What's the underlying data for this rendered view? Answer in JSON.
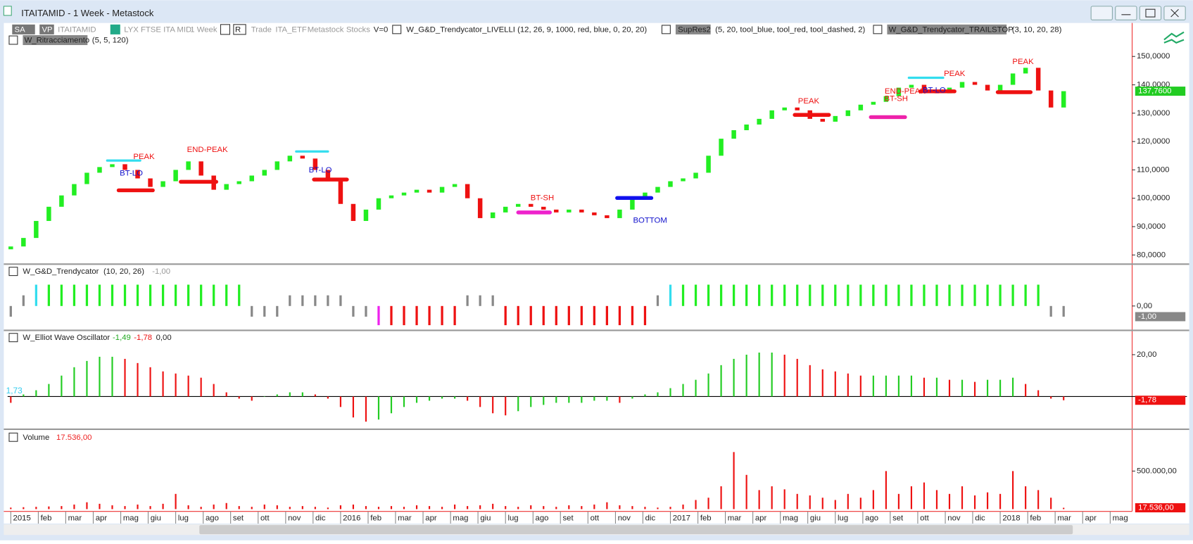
{
  "window": {
    "title": "ITAITAMID - 1 Week - Metastock"
  },
  "toolbar": {
    "sa": "SA",
    "vp": "VP",
    "symbol": "ITAITAMID",
    "name": "LYX FTSE ITA MID",
    "period": "1 Week",
    "r": "R",
    "trade": "Trade",
    "group": "ITA_ETF",
    "source": "Metastock",
    "kind": "Stocks",
    "v": "V=0",
    "indicators": [
      {
        "name": "W_G&D_Trendycator_LIVELLI",
        "params": "(12, 26, 9, 1000, red, blue, 0, 20, 20)"
      },
      {
        "name": "SupRes2",
        "params": "(5, 20, tool_blue, tool_red, tool_dashed, 2)"
      },
      {
        "name": "W_G&D_Trendycator_TRAILSTOP",
        "params": "(3, 10, 20, 28)"
      },
      {
        "name": "W_Ritracciamento",
        "params": "(5, 5, 120)"
      }
    ]
  },
  "chart_data": [
    {
      "type": "candlestick",
      "up_color": "#22ee22",
      "down_color": "#ee1111",
      "last_label": "137,7600",
      "last_color": "#22cc22",
      "open": [
        82,
        83,
        86,
        92,
        97,
        101,
        105,
        109,
        111,
        112,
        110,
        107,
        104,
        106,
        110,
        113,
        108,
        103,
        105,
        106,
        108,
        110,
        113,
        115,
        114,
        110,
        106,
        98,
        92,
        96,
        100,
        101,
        102,
        103,
        102,
        104,
        105,
        100,
        93,
        95,
        97,
        98,
        97,
        96,
        95,
        96,
        95,
        94,
        93,
        96,
        100,
        102,
        104,
        106,
        107,
        109,
        115,
        121,
        124,
        126,
        128,
        131,
        132,
        131,
        128,
        127,
        129,
        131,
        133,
        134,
        136,
        139,
        140,
        138,
        137,
        139,
        141,
        140,
        138,
        140,
        144,
        146,
        138,
        132
      ],
      "close": [
        83,
        86,
        92,
        97,
        101,
        105,
        109,
        111,
        112,
        110,
        107,
        104,
        106,
        110,
        113,
        108,
        103,
        105,
        106,
        108,
        110,
        113,
        115,
        114,
        110,
        106,
        98,
        92,
        96,
        100,
        101,
        102,
        103,
        102,
        104,
        105,
        100,
        93,
        95,
        97,
        98,
        97,
        96,
        95,
        96,
        95,
        94,
        93,
        96,
        100,
        102,
        104,
        106,
        107,
        109,
        115,
        121,
        124,
        126,
        128,
        131,
        132,
        131,
        128,
        127,
        129,
        131,
        133,
        134,
        136,
        139,
        140,
        138,
        137,
        139,
        141,
        140,
        138,
        140,
        144,
        146,
        138,
        132,
        137.76
      ],
      "ylim": [
        77.3,
        161.8
      ],
      "yticks": [
        {
          "value": 80,
          "label": "80,0000"
        },
        {
          "value": 90,
          "label": "90,0000"
        },
        {
          "value": 100,
          "label": "100,0000"
        },
        {
          "value": 110,
          "label": "110,0000"
        },
        {
          "value": 120,
          "label": "120,0000"
        },
        {
          "value": 130,
          "label": "130,0000"
        },
        {
          "value": 140,
          "label": "140,0000"
        },
        {
          "value": 150,
          "label": "150,0000"
        }
      ],
      "levels": [
        {
          "start": 7.6,
          "end": 10.2,
          "value": 113.3,
          "color": "#33ddee"
        },
        {
          "start": 8.5,
          "end": 11.2,
          "value": 102.8,
          "color": "#ee1111"
        },
        {
          "start": 13.4,
          "end": 16.2,
          "value": 105.8,
          "color": "#ee1111"
        },
        {
          "start": 22.5,
          "end": 25,
          "value": 116.5,
          "color": "#33ddee"
        },
        {
          "start": 23.9,
          "end": 26.5,
          "value": 106.6,
          "color": "#ee1111"
        },
        {
          "start": 40,
          "end": 42.5,
          "value": 95,
          "color": "#ee22cc"
        },
        {
          "start": 47.8,
          "end": 50.5,
          "value": 100.1,
          "color": "#1111ee"
        },
        {
          "start": 61.8,
          "end": 64.5,
          "value": 129.4,
          "color": "#ee1111"
        },
        {
          "start": 67.8,
          "end": 70.5,
          "value": 128.6,
          "color": "#ee22aa"
        },
        {
          "start": 70.8,
          "end": 73.5,
          "value": 142.5,
          "color": "#33ddee"
        },
        {
          "start": 71.7,
          "end": 74.4,
          "value": 137.7,
          "color": "#ee1111"
        },
        {
          "start": 77.8,
          "end": 80.4,
          "value": 137.4,
          "color": "#ee1111"
        }
      ],
      "annotations": [
        {
          "text": "PEAK",
          "x": 10.5,
          "y": 114.6,
          "color": "#ee1111"
        },
        {
          "text": "BT-LO",
          "x": 9.5,
          "y": 108.7,
          "color": "#1111cc"
        },
        {
          "text": "END-PEAK",
          "x": 15.5,
          "y": 117,
          "color": "#ee1111"
        },
        {
          "text": "BT-LO",
          "x": 24.4,
          "y": 109.8,
          "color": "#1111cc"
        },
        {
          "text": "BT-SH",
          "x": 41.9,
          "y": 100.1,
          "color": "#ee1111"
        },
        {
          "text": "BOTTOM",
          "x": 50.4,
          "y": 92.1,
          "color": "#1111cc"
        },
        {
          "text": "PEAK",
          "x": 62.9,
          "y": 134.2,
          "color": "#ee1111"
        },
        {
          "text": "END-PEAK",
          "x": 70.5,
          "y": 137.7,
          "color": "#ee1111"
        },
        {
          "text": "BT-SH",
          "x": 69.8,
          "y": 135,
          "color": "#ee1111"
        },
        {
          "text": "BT-LO",
          "x": 72.8,
          "y": 138,
          "color": "#1111cc"
        },
        {
          "text": "PEAK",
          "x": 74.4,
          "y": 143.8,
          "color": "#ee1111"
        },
        {
          "text": "PEAK",
          "x": 79.8,
          "y": 148.1,
          "color": "#ee1111"
        }
      ]
    },
    {
      "type": "bar",
      "title": "W_G&D_Trendycator",
      "params": "(10, 20, 26)",
      "last_label": "-1,00",
      "last_color": "#888888",
      "values": [
        -1,
        1,
        2,
        2,
        2,
        2,
        2,
        2,
        2,
        2,
        2,
        2,
        2,
        2,
        2,
        2,
        2,
        2,
        2,
        -1,
        -1,
        -1,
        1,
        1,
        1,
        1,
        1,
        -1,
        -1,
        -1.8,
        -1.8,
        -1.8,
        -1.8,
        -1.8,
        -1.8,
        -1.8,
        1,
        1,
        1,
        -1.8,
        -1.8,
        -1.8,
        -1.8,
        -1.8,
        -1.8,
        -1.8,
        -1.8,
        -1.8,
        -1.8,
        -1.8,
        -1.8,
        1,
        2,
        2,
        2,
        2,
        2,
        2,
        2,
        2,
        2,
        2,
        2,
        2,
        2,
        2,
        2,
        2,
        2,
        2,
        2,
        2,
        2,
        2,
        2,
        2,
        2,
        2,
        2,
        2,
        2,
        2,
        -1,
        -1
      ],
      "colors": [
        "#888888",
        "#888888",
        "#33ddee",
        "#22ee22",
        "#22ee22",
        "#22ee22",
        "#22ee22",
        "#22ee22",
        "#22ee22",
        "#22ee22",
        "#22ee22",
        "#22ee22",
        "#22ee22",
        "#22ee22",
        "#22ee22",
        "#22ee22",
        "#22ee22",
        "#22ee22",
        "#22ee22",
        "#888888",
        "#888888",
        "#888888",
        "#888888",
        "#888888",
        "#888888",
        "#888888",
        "#888888",
        "#888888",
        "#888888",
        "#ee22ee",
        "#ee1111",
        "#ee1111",
        "#ee1111",
        "#ee1111",
        "#ee1111",
        "#ee1111",
        "#888888",
        "#888888",
        "#888888",
        "#ee1111",
        "#ee1111",
        "#ee1111",
        "#ee1111",
        "#ee1111",
        "#ee1111",
        "#ee1111",
        "#ee1111",
        "#ee1111",
        "#ee1111",
        "#ee1111",
        "#ee1111",
        "#888888",
        "#33ddee",
        "#22ee22",
        "#22ee22",
        "#22ee22",
        "#22ee22",
        "#22ee22",
        "#22ee22",
        "#22ee22",
        "#22ee22",
        "#22ee22",
        "#22ee22",
        "#22ee22",
        "#22ee22",
        "#22ee22",
        "#22ee22",
        "#22ee22",
        "#22ee22",
        "#22ee22",
        "#22ee22",
        "#22ee22",
        "#22ee22",
        "#22ee22",
        "#22ee22",
        "#22ee22",
        "#22ee22",
        "#22ee22",
        "#22ee22",
        "#22ee22",
        "#22ee22",
        "#22ee22",
        "#888888",
        "#888888"
      ],
      "ylim": [
        -2.14,
        3.71
      ],
      "yticks": [
        {
          "value": 0,
          "label": "0,00"
        }
      ]
    },
    {
      "type": "bar",
      "title": "W_Elliot Wave Oscillator",
      "header_values": [
        {
          "text": "-1,49",
          "color": "#22aa22"
        },
        {
          "text": "-1,78",
          "color": "#ee1111"
        },
        {
          "text": "0,00",
          "color": "#222222"
        }
      ],
      "side_label": "1,73",
      "up_color": "#22cc22",
      "down_color": "#ee1111",
      "last_label": "-1,78",
      "last_color": "#ee1111",
      "values": [
        -3,
        1,
        3,
        6,
        10,
        14,
        17,
        19,
        19,
        18,
        16,
        14,
        12,
        11,
        10,
        9,
        6,
        2,
        -1,
        -2,
        0,
        1,
        2,
        2,
        1,
        -1,
        -5,
        -10,
        -12,
        -11,
        -8,
        -5,
        -3,
        -2,
        -1,
        -1,
        -2,
        -5,
        -8,
        -9,
        -7,
        -5,
        -4,
        -3,
        -3,
        -3,
        -2,
        -2,
        -3,
        -1,
        1,
        2,
        4,
        6,
        8,
        11,
        15,
        18,
        20,
        21,
        21,
        20,
        18,
        15,
        13,
        12,
        11,
        10,
        10,
        10,
        10,
        10,
        9,
        9,
        8,
        8,
        7,
        8,
        8,
        9,
        6,
        3,
        -1,
        -1.78
      ],
      "ylim": [
        -14.9,
        30.9
      ],
      "yticks": [
        {
          "value": 20,
          "label": "20,00"
        }
      ]
    },
    {
      "type": "bar",
      "title": "Volume",
      "color": "#ee1111",
      "last_label": "17.536,00",
      "last_color": "#ee1111",
      "values": [
        20000,
        25000,
        30000,
        35000,
        40000,
        60000,
        90000,
        70000,
        50000,
        40000,
        60000,
        40000,
        70000,
        200000,
        50000,
        30000,
        60000,
        80000,
        40000,
        30000,
        60000,
        50000,
        30000,
        40000,
        30000,
        20000,
        50000,
        60000,
        40000,
        30000,
        40000,
        30000,
        50000,
        40000,
        30000,
        60000,
        40000,
        50000,
        70000,
        40000,
        30000,
        50000,
        40000,
        30000,
        50000,
        40000,
        60000,
        90000,
        50000,
        40000,
        30000,
        20000,
        30000,
        60000,
        120000,
        150000,
        300000,
        750000,
        450000,
        250000,
        300000,
        260000,
        200000,
        180000,
        150000,
        120000,
        200000,
        150000,
        250000,
        500000,
        200000,
        300000,
        350000,
        250000,
        200000,
        300000,
        180000,
        220000,
        200000,
        500000,
        300000,
        250000,
        150000,
        17536
      ],
      "ylim": [
        0,
        1030000
      ],
      "yticks": [
        {
          "value": 500000,
          "label": "500.000,00"
        }
      ],
      "xlim": [
        -0.25,
        88.4
      ],
      "xticks": [
        {
          "value": 0,
          "label": "2015"
        },
        {
          "value": 2.17,
          "label": "feb"
        },
        {
          "value": 4.33,
          "label": "mar"
        },
        {
          "value": 6.5,
          "label": "apr"
        },
        {
          "value": 8.67,
          "label": "mag"
        },
        {
          "value": 10.83,
          "label": "giu"
        },
        {
          "value": 13,
          "label": "lug"
        },
        {
          "value": 15.17,
          "label": "ago"
        },
        {
          "value": 17.33,
          "label": "set"
        },
        {
          "value": 19.5,
          "label": "ott"
        },
        {
          "value": 21.67,
          "label": "nov"
        },
        {
          "value": 23.83,
          "label": "dic"
        },
        {
          "value": 26,
          "label": "2016"
        },
        {
          "value": 28.17,
          "label": "feb"
        },
        {
          "value": 30.33,
          "label": "mar"
        },
        {
          "value": 32.5,
          "label": "apr"
        },
        {
          "value": 34.67,
          "label": "mag"
        },
        {
          "value": 36.83,
          "label": "giu"
        },
        {
          "value": 39,
          "label": "lug"
        },
        {
          "value": 41.17,
          "label": "ago"
        },
        {
          "value": 43.33,
          "label": "set"
        },
        {
          "value": 45.5,
          "label": "ott"
        },
        {
          "value": 47.67,
          "label": "nov"
        },
        {
          "value": 49.83,
          "label": "dic"
        },
        {
          "value": 52,
          "label": "2017"
        },
        {
          "value": 54.17,
          "label": "feb"
        },
        {
          "value": 56.33,
          "label": "mar"
        },
        {
          "value": 58.5,
          "label": "apr"
        },
        {
          "value": 60.67,
          "label": "mag"
        },
        {
          "value": 62.83,
          "label": "giu"
        },
        {
          "value": 65,
          "label": "lug"
        },
        {
          "value": 67.17,
          "label": "ago"
        },
        {
          "value": 69.33,
          "label": "set"
        },
        {
          "value": 71.5,
          "label": "ott"
        },
        {
          "value": 73.67,
          "label": "nov"
        },
        {
          "value": 75.83,
          "label": "dic"
        },
        {
          "value": 78,
          "label": "2018"
        },
        {
          "value": 80.17,
          "label": "feb"
        },
        {
          "value": 82.33,
          "label": "mar"
        },
        {
          "value": 84.5,
          "label": "apr"
        },
        {
          "value": 86.67,
          "label": "mag"
        }
      ]
    }
  ]
}
